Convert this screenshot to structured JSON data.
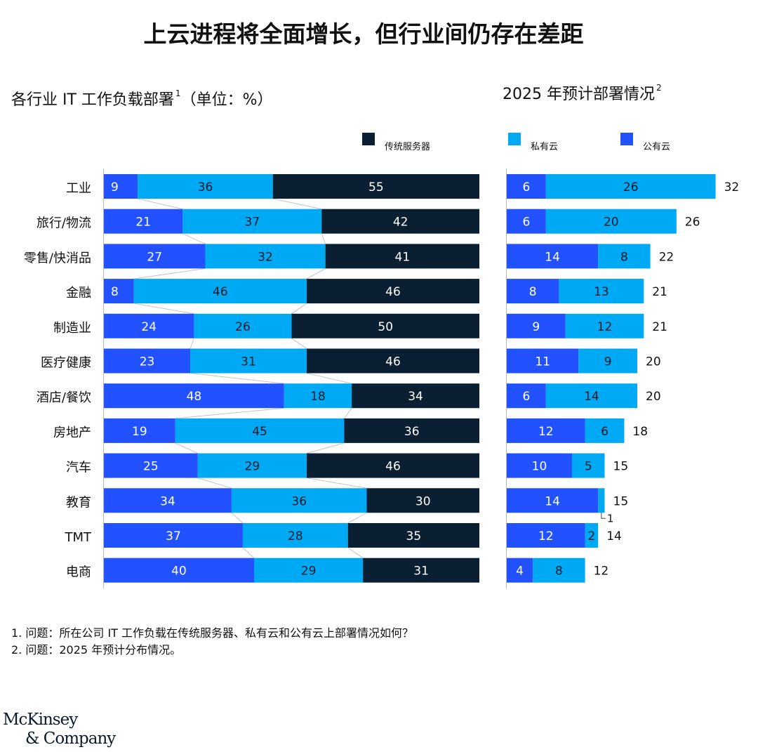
{
  "title": "上云进程将全面增长，但行业间仍存在差距",
  "left_subtitle": "各行业 IT 工作负载部署",
  "left_subtitle_sup": "1",
  "left_subtitle_unit": "（单位：%）",
  "right_subtitle": "2025 年预计部署情况",
  "right_subtitle_sup": "2",
  "legend": [
    {
      "label": "传统服务器",
      "color": "#0b1f33"
    },
    {
      "label": "私有云",
      "color": "#00a9f4"
    },
    {
      "label": "公有云",
      "color": "#2251ff"
    }
  ],
  "colors": {
    "public": "#2251ff",
    "private": "#00a9f4",
    "traditional": "#0b1f33"
  },
  "notes": [
    "1. 问题：所在公司 IT 工作负载在传统服务器、私有云和公有云上部署情况如何？",
    "2. 问题：2025 年预计分布情况。"
  ],
  "logo": {
    "line1": "McKinsey",
    "line2": "& Company"
  },
  "chart_data": [
    {
      "type": "bar",
      "orientation": "horizontal",
      "stacked": true,
      "title": "各行业 IT 工作负载部署¹（单位：%）",
      "categories": [
        "工业",
        "旅行/物流",
        "零售/快消品",
        "金融",
        "制造业",
        "医疗健康",
        "酒店/餐饮",
        "房地产",
        "汽车",
        "教育",
        "TMT",
        "电商"
      ],
      "series": [
        {
          "name": "公有云",
          "values": [
            9,
            21,
            27,
            8,
            24,
            23,
            48,
            19,
            25,
            34,
            37,
            40
          ]
        },
        {
          "name": "私有云",
          "values": [
            36,
            37,
            32,
            46,
            26,
            31,
            18,
            45,
            29,
            36,
            28,
            29
          ]
        },
        {
          "name": "传统服务器",
          "values": [
            55,
            42,
            41,
            46,
            50,
            46,
            34,
            36,
            46,
            30,
            35,
            31
          ]
        }
      ],
      "xlim": [
        0,
        100
      ]
    },
    {
      "type": "bar",
      "orientation": "horizontal",
      "stacked": true,
      "title": "2025 年预计部署情况²",
      "categories": [
        "工业",
        "旅行/物流",
        "零售/快消品",
        "金融",
        "制造业",
        "医疗健康",
        "酒店/餐饮",
        "房地产",
        "汽车",
        "教育",
        "TMT",
        "电商"
      ],
      "series": [
        {
          "name": "公有云",
          "values": [
            6,
            6,
            14,
            8,
            9,
            11,
            6,
            12,
            10,
            14,
            12,
            4
          ]
        },
        {
          "name": "私有云",
          "values": [
            26,
            20,
            8,
            13,
            12,
            9,
            14,
            6,
            5,
            1,
            2,
            8
          ]
        }
      ],
      "totals": [
        32,
        26,
        22,
        21,
        21,
        20,
        20,
        18,
        15,
        15,
        14,
        12
      ]
    }
  ]
}
